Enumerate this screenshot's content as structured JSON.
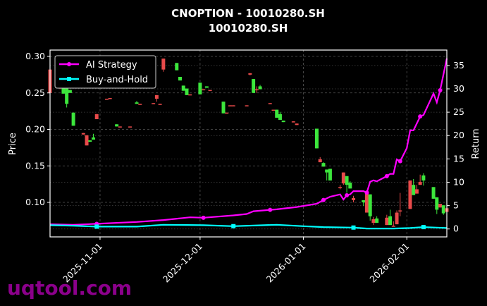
{
  "chart_data": {
    "type": "candlestick+line",
    "title": "CNOPTION - 10010280.SH",
    "subtitle": "10010280.SH",
    "ylabel_left": "Price",
    "ylabel_right": "Return",
    "xlim": [
      "2025-10-17",
      "2026-02-13"
    ],
    "ylim_left": [
      0.0527,
      0.3087
    ],
    "ylim_right": [
      -1.7,
      38.3
    ],
    "xticks": [
      "2025-11-01",
      "2025-12-01",
      "2026-01-01",
      "2026-02-01"
    ],
    "yticks_left": [
      "0.10",
      "0.15",
      "0.20",
      "0.25",
      "0.30"
    ],
    "yticks_right": [
      "0",
      "5",
      "10",
      "15",
      "20",
      "25",
      "30",
      "35"
    ],
    "grid": true,
    "legend_position": "top-left",
    "colors": {
      "up": "#e84a4a",
      "down": "#3ce63c",
      "ai": "#ff00ff",
      "bh": "#00ffff",
      "background": "#000000",
      "grid": "#555555"
    },
    "candles_columns": [
      "date",
      "open",
      "high",
      "low",
      "close"
    ],
    "candles": [
      [
        "2025-10-17",
        0.25,
        0.282,
        0.25,
        0.282
      ],
      [
        "2025-10-20",
        0.262,
        0.27,
        0.255,
        0.263
      ],
      [
        "2025-10-21",
        0.272,
        0.272,
        0.249,
        0.249
      ],
      [
        "2025-10-22",
        0.256,
        0.256,
        0.23,
        0.235
      ],
      [
        "2025-10-23",
        0.254,
        0.254,
        0.25,
        0.25
      ],
      [
        "2025-10-24",
        0.223,
        0.223,
        0.205,
        0.205
      ],
      [
        "2025-10-27",
        0.193,
        0.195,
        0.193,
        0.195
      ],
      [
        "2025-10-28",
        0.178,
        0.192,
        0.178,
        0.192
      ],
      [
        "2025-10-29",
        0.185,
        0.185,
        0.183,
        0.183
      ],
      [
        "2025-10-30",
        0.189,
        0.194,
        0.186,
        0.186
      ],
      [
        "2025-10-31",
        0.214,
        0.221,
        0.214,
        0.221
      ],
      [
        "2025-11-03",
        0.241,
        0.242,
        0.241,
        0.242
      ],
      [
        "2025-11-04",
        0.242,
        0.243,
        0.242,
        0.243
      ],
      [
        "2025-11-06",
        0.207,
        0.207,
        0.204,
        0.204
      ],
      [
        "2025-11-07",
        0.203,
        0.204,
        0.203,
        0.204
      ],
      [
        "2025-11-10",
        0.203,
        0.204,
        0.203,
        0.204
      ],
      [
        "2025-11-12",
        0.237,
        0.239,
        0.235,
        0.235
      ],
      [
        "2025-11-13",
        0.234,
        0.235,
        0.234,
        0.235
      ],
      [
        "2025-11-17",
        0.235,
        0.236,
        0.235,
        0.236
      ],
      [
        "2025-11-18",
        0.242,
        0.247,
        0.238,
        0.247
      ],
      [
        "2025-11-19",
        0.234,
        0.235,
        0.234,
        0.235
      ],
      [
        "2025-11-20",
        0.282,
        0.297,
        0.279,
        0.297
      ],
      [
        "2025-11-24",
        0.291,
        0.291,
        0.281,
        0.281
      ],
      [
        "2025-11-25",
        0.272,
        0.272,
        0.267,
        0.267
      ],
      [
        "2025-11-26",
        0.26,
        0.26,
        0.253,
        0.253
      ],
      [
        "2025-11-27",
        0.256,
        0.256,
        0.247,
        0.247
      ],
      [
        "2025-11-28",
        0.247,
        0.248,
        0.247,
        0.248
      ],
      [
        "2025-12-01",
        0.264,
        0.264,
        0.248,
        0.248
      ],
      [
        "2025-12-02",
        0.254,
        0.255,
        0.254,
        0.255
      ],
      [
        "2025-12-03",
        0.259,
        0.259,
        0.257,
        0.257
      ],
      [
        "2025-12-04",
        0.253,
        0.254,
        0.253,
        0.254
      ],
      [
        "2025-12-08",
        0.238,
        0.238,
        0.222,
        0.222
      ],
      [
        "2025-12-09",
        0.222,
        0.223,
        0.222,
        0.223
      ],
      [
        "2025-12-10",
        0.232,
        0.233,
        0.232,
        0.233
      ],
      [
        "2025-12-11",
        0.232,
        0.233,
        0.232,
        0.233
      ],
      [
        "2025-12-15",
        0.232,
        0.233,
        0.232,
        0.233
      ],
      [
        "2025-12-16",
        0.275,
        0.277,
        0.274,
        0.277
      ],
      [
        "2025-12-17",
        0.269,
        0.269,
        0.25,
        0.25
      ],
      [
        "2025-12-18",
        0.254,
        0.259,
        0.25,
        0.255
      ],
      [
        "2025-12-19",
        0.259,
        0.261,
        0.255,
        0.255
      ],
      [
        "2025-12-22",
        0.235,
        0.236,
        0.235,
        0.236
      ],
      [
        "2025-12-23",
        0.226,
        0.227,
        0.226,
        0.227
      ],
      [
        "2025-12-24",
        0.227,
        0.227,
        0.216,
        0.216
      ],
      [
        "2025-12-25",
        0.221,
        0.224,
        0.213,
        0.213
      ],
      [
        "2025-12-26",
        0.212,
        0.212,
        0.21,
        0.21
      ],
      [
        "2025-12-29",
        0.21,
        0.211,
        0.21,
        0.211
      ],
      [
        "2025-12-30",
        0.206,
        0.208,
        0.206,
        0.208
      ],
      [
        "2026-01-05",
        0.201,
        0.201,
        0.174,
        0.174
      ],
      [
        "2026-01-06",
        0.155,
        0.162,
        0.155,
        0.159
      ],
      [
        "2026-01-07",
        0.154,
        0.155,
        0.149,
        0.149
      ],
      [
        "2026-01-08",
        0.145,
        0.145,
        0.13,
        0.141
      ],
      [
        "2026-01-09",
        0.146,
        0.146,
        0.13,
        0.13
      ],
      [
        "2026-01-12",
        0.12,
        0.124,
        0.118,
        0.121
      ],
      [
        "2026-01-13",
        0.126,
        0.141,
        0.124,
        0.141
      ],
      [
        "2026-01-14",
        0.136,
        0.136,
        0.113,
        0.124
      ],
      [
        "2026-01-15",
        0.127,
        0.129,
        0.119,
        0.119
      ],
      [
        "2026-01-16",
        0.103,
        0.109,
        0.1,
        0.106
      ],
      [
        "2026-01-19",
        0.103,
        0.103,
        0.095,
        0.1
      ],
      [
        "2026-01-20",
        0.086,
        0.114,
        0.086,
        0.114
      ],
      [
        "2026-01-21",
        0.111,
        0.111,
        0.075,
        0.081
      ],
      [
        "2026-01-22",
        0.072,
        0.08,
        0.069,
        0.077
      ],
      [
        "2026-01-23",
        0.078,
        0.081,
        0.072,
        0.072
      ],
      [
        "2026-01-26",
        0.069,
        0.083,
        0.069,
        0.079
      ],
      [
        "2026-01-27",
        0.081,
        0.09,
        0.069,
        0.069
      ],
      [
        "2026-01-28",
        0.067,
        0.074,
        0.067,
        0.068
      ],
      [
        "2026-01-29",
        0.07,
        0.089,
        0.07,
        0.086
      ],
      [
        "2026-01-30",
        0.088,
        0.113,
        0.081,
        0.089
      ],
      [
        "2026-02-02",
        0.091,
        0.13,
        0.091,
        0.13
      ],
      [
        "2026-02-03",
        0.124,
        0.132,
        0.11,
        0.11
      ],
      [
        "2026-02-04",
        0.112,
        0.124,
        0.112,
        0.118
      ],
      [
        "2026-02-05",
        0.124,
        0.138,
        0.124,
        0.128
      ],
      [
        "2026-02-06",
        0.137,
        0.14,
        0.123,
        0.13
      ],
      [
        "2026-02-09",
        0.121,
        0.121,
        0.105,
        0.105
      ],
      [
        "2026-02-10",
        0.107,
        0.107,
        0.084,
        0.09
      ],
      [
        "2026-02-11",
        0.093,
        0.098,
        0.093,
        0.098
      ],
      [
        "2026-02-12",
        0.096,
        0.096,
        0.083,
        0.085
      ],
      [
        "2026-02-13",
        0.087,
        0.092,
        0.087,
        0.092
      ]
    ],
    "series": [
      {
        "name": "AI Strategy",
        "values": [
          [
            "2025-10-17",
            1.0
          ],
          [
            "2025-10-24",
            0.9
          ],
          [
            "2025-10-31",
            1.1
          ],
          [
            "2025-11-12",
            1.5
          ],
          [
            "2025-11-20",
            1.9
          ],
          [
            "2025-11-28",
            2.5
          ],
          [
            "2025-12-02",
            2.4
          ],
          [
            "2025-12-11",
            2.9
          ],
          [
            "2025-12-15",
            3.2
          ],
          [
            "2025-12-17",
            3.8
          ],
          [
            "2025-12-22",
            4.1
          ],
          [
            "2025-12-24",
            4.2
          ],
          [
            "2025-12-30",
            4.7
          ],
          [
            "2026-01-05",
            5.4
          ],
          [
            "2026-01-07",
            6.2
          ],
          [
            "2026-01-09",
            6.9
          ],
          [
            "2026-01-12",
            7.4
          ],
          [
            "2026-01-13",
            6.3
          ],
          [
            "2026-01-14",
            7.2
          ],
          [
            "2026-01-15",
            7.4
          ],
          [
            "2026-01-16",
            8.1
          ],
          [
            "2026-01-19",
            8.1
          ],
          [
            "2026-01-20",
            7.8
          ],
          [
            "2026-01-21",
            10.1
          ],
          [
            "2026-01-22",
            10.4
          ],
          [
            "2026-01-23",
            10.2
          ],
          [
            "2026-01-26",
            11.3
          ],
          [
            "2026-01-27",
            11.8
          ],
          [
            "2026-01-28",
            11.8
          ],
          [
            "2026-01-29",
            14.9
          ],
          [
            "2026-01-30",
            14.5
          ],
          [
            "2026-02-01",
            17.3
          ],
          [
            "2026-02-02",
            21.1
          ],
          [
            "2026-02-03",
            21.1
          ],
          [
            "2026-02-05",
            24.1
          ],
          [
            "2026-02-06",
            24.4
          ],
          [
            "2026-02-09",
            29.0
          ],
          [
            "2026-02-10",
            27.1
          ],
          [
            "2026-02-11",
            29.7
          ],
          [
            "2026-02-13",
            36.5
          ]
        ]
      },
      {
        "name": "Buy-and-Hold",
        "values": [
          [
            "2025-10-17",
            0.8
          ],
          [
            "2025-10-24",
            0.7
          ],
          [
            "2025-10-31",
            0.5
          ],
          [
            "2025-11-12",
            0.5
          ],
          [
            "2025-11-20",
            0.9
          ],
          [
            "2025-12-02",
            0.8
          ],
          [
            "2025-12-11",
            0.6
          ],
          [
            "2025-12-24",
            0.9
          ],
          [
            "2026-01-01",
            0.6
          ],
          [
            "2026-01-07",
            0.4
          ],
          [
            "2026-01-16",
            0.3
          ],
          [
            "2026-01-20",
            0.1
          ],
          [
            "2026-01-28",
            0.1
          ],
          [
            "2026-02-02",
            0.2
          ],
          [
            "2026-02-06",
            0.4
          ],
          [
            "2026-02-10",
            0.3
          ],
          [
            "2026-02-13",
            0.2
          ]
        ]
      }
    ]
  },
  "watermark": "uqtool.com"
}
